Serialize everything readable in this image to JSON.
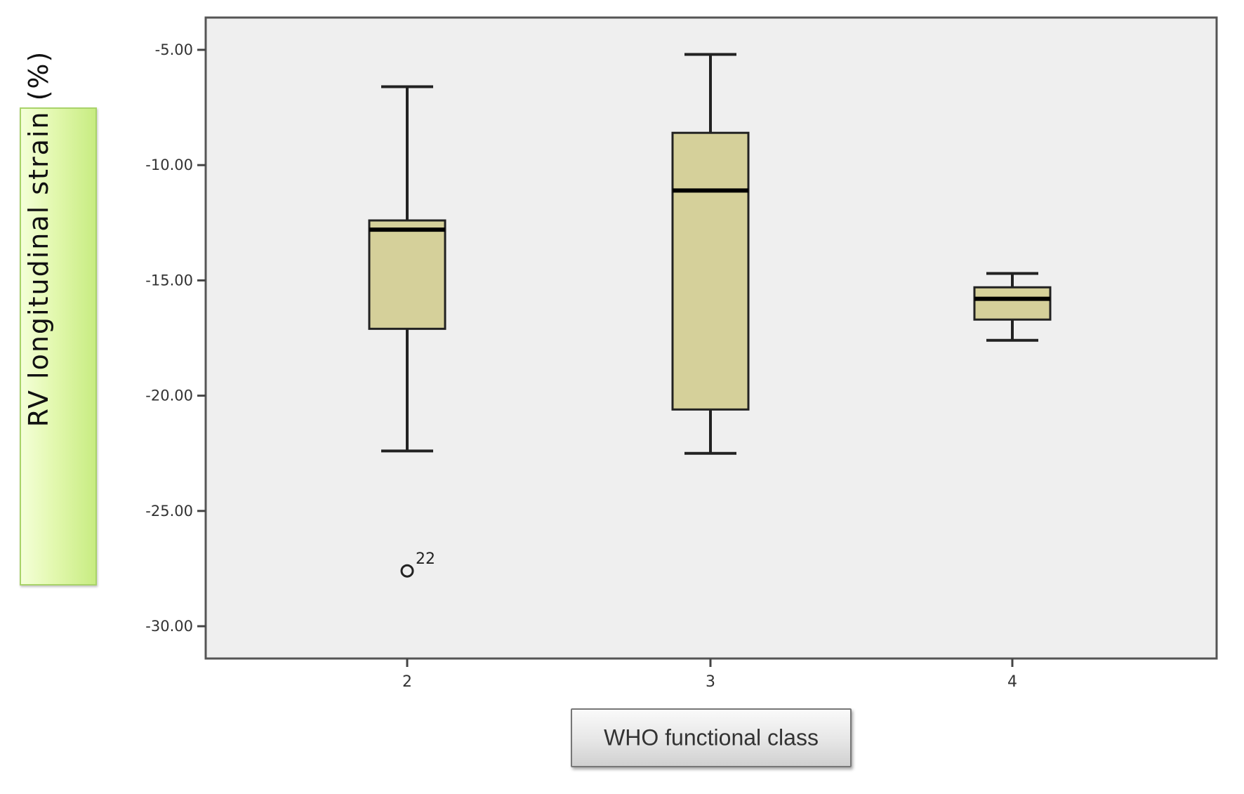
{
  "chart_data": {
    "type": "box",
    "xlabel": "WHO functional class",
    "ylabel": "RV longitudinal  strain  (%)",
    "ylim": [
      -31.4,
      -3.6
    ],
    "yticks": [
      "-5.00",
      "-10.00",
      "-15.00",
      "-20.00",
      "-25.00",
      "-30.00"
    ],
    "ytick_values": [
      -5,
      -10,
      -15,
      -20,
      -25,
      -30
    ],
    "categories": [
      "2",
      "3",
      "4"
    ],
    "boxes": [
      {
        "category": "2",
        "whisker_high": -6.6,
        "q3": -12.4,
        "median": -12.8,
        "q1": -17.1,
        "whisker_low": -22.4
      },
      {
        "category": "3",
        "whisker_high": -5.2,
        "q3": -8.6,
        "median": -11.1,
        "q1": -20.6,
        "whisker_low": -22.5
      },
      {
        "category": "4",
        "whisker_high": -14.7,
        "q3": -15.3,
        "median": -15.8,
        "q1": -16.7,
        "whisker_low": -17.6
      }
    ],
    "outliers": [
      {
        "category": "2",
        "value": -27.6,
        "label": "22"
      }
    ],
    "grid": false,
    "colors": {
      "plot_background": "#efefef",
      "box_fill": "#d5d09a",
      "stroke": "#222222"
    }
  }
}
